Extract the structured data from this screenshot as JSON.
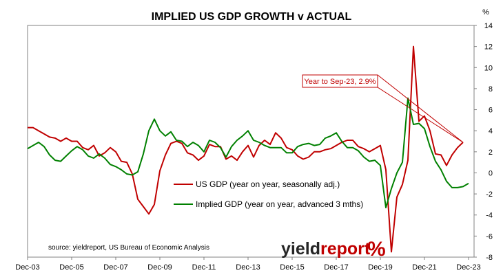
{
  "chart_data": {
    "type": "line",
    "title": "IMPLIED US GDP GROWTH v ACTUAL",
    "ylabel": "%",
    "ylim": [
      -8,
      14
    ],
    "yticks": [
      -8,
      -6,
      -4,
      -2,
      0,
      2,
      4,
      6,
      8,
      10,
      12,
      14
    ],
    "xlim": [
      "2003-12",
      "2024-03"
    ],
    "xticks": [
      "Dec-03",
      "Dec-05",
      "Dec-07",
      "Dec-09",
      "Dec-11",
      "Dec-13",
      "Dec-15",
      "Dec-17",
      "Dec-19",
      "Dec-21",
      "Dec-23"
    ],
    "grid": false,
    "legend_position": "center-left",
    "source": "source: yieldreport, US Bureau of Economic Analysis",
    "annotation": {
      "text": "Year to Sep-23, 2.9%",
      "x": "2023-09",
      "y": 2.9
    },
    "logo": {
      "text_dark": "yield",
      "text_accent": "report",
      "symbol": "%"
    },
    "colors": {
      "actual": "#c00000",
      "implied": "#008000",
      "axis": "#808080",
      "callout_border": "#c00000",
      "logo_dark": "#262626",
      "logo_accent": "#c00000"
    },
    "series": [
      {
        "name": "US GDP (year on year, seasonally adj.)",
        "key": "actual",
        "points": [
          [
            "2003-12",
            4.3
          ],
          [
            "2004-03",
            4.3
          ],
          [
            "2004-06",
            4.0
          ],
          [
            "2004-09",
            3.7
          ],
          [
            "2004-12",
            3.4
          ],
          [
            "2005-03",
            3.3
          ],
          [
            "2005-06",
            3.0
          ],
          [
            "2005-09",
            3.3
          ],
          [
            "2005-12",
            3.0
          ],
          [
            "2006-03",
            3.0
          ],
          [
            "2006-06",
            2.4
          ],
          [
            "2006-09",
            2.2
          ],
          [
            "2006-12",
            2.6
          ],
          [
            "2007-03",
            1.6
          ],
          [
            "2007-06",
            1.9
          ],
          [
            "2007-09",
            2.4
          ],
          [
            "2007-12",
            2.0
          ],
          [
            "2008-03",
            1.1
          ],
          [
            "2008-06",
            1.0
          ],
          [
            "2008-09",
            -0.1
          ],
          [
            "2008-12",
            -2.5
          ],
          [
            "2009-03",
            -3.2
          ],
          [
            "2009-06",
            -3.9
          ],
          [
            "2009-09",
            -3.0
          ],
          [
            "2009-12",
            0.2
          ],
          [
            "2010-03",
            1.7
          ],
          [
            "2010-06",
            2.8
          ],
          [
            "2010-09",
            3.0
          ],
          [
            "2010-12",
            2.8
          ],
          [
            "2011-03",
            1.9
          ],
          [
            "2011-06",
            1.7
          ],
          [
            "2011-09",
            1.2
          ],
          [
            "2011-12",
            1.6
          ],
          [
            "2012-03",
            2.7
          ],
          [
            "2012-06",
            2.5
          ],
          [
            "2012-09",
            2.5
          ],
          [
            "2012-12",
            1.3
          ],
          [
            "2013-03",
            1.6
          ],
          [
            "2013-06",
            1.2
          ],
          [
            "2013-09",
            2.0
          ],
          [
            "2013-12",
            2.6
          ],
          [
            "2014-03",
            1.5
          ],
          [
            "2014-06",
            2.6
          ],
          [
            "2014-09",
            3.1
          ],
          [
            "2014-12",
            2.7
          ],
          [
            "2015-03",
            3.8
          ],
          [
            "2015-06",
            3.3
          ],
          [
            "2015-09",
            2.4
          ],
          [
            "2015-12",
            2.2
          ],
          [
            "2016-03",
            1.6
          ],
          [
            "2016-06",
            1.3
          ],
          [
            "2016-09",
            1.5
          ],
          [
            "2016-12",
            2.0
          ],
          [
            "2017-03",
            2.0
          ],
          [
            "2017-06",
            2.2
          ],
          [
            "2017-09",
            2.3
          ],
          [
            "2017-12",
            2.6
          ],
          [
            "2018-03",
            2.9
          ],
          [
            "2018-06",
            3.1
          ],
          [
            "2018-09",
            3.1
          ],
          [
            "2018-12",
            2.5
          ],
          [
            "2019-03",
            2.3
          ],
          [
            "2019-06",
            2.0
          ],
          [
            "2019-09",
            2.3
          ],
          [
            "2019-12",
            2.6
          ],
          [
            "2020-03",
            0.3
          ],
          [
            "2020-06",
            -7.5
          ],
          [
            "2020-09",
            -2.3
          ],
          [
            "2020-12",
            -1.1
          ],
          [
            "2021-03",
            1.2
          ],
          [
            "2021-06",
            12.0
          ],
          [
            "2021-09",
            4.9
          ],
          [
            "2021-12",
            5.4
          ],
          [
            "2022-03",
            4.0
          ],
          [
            "2022-06",
            1.8
          ],
          [
            "2022-09",
            1.7
          ],
          [
            "2022-12",
            0.7
          ],
          [
            "2023-03",
            1.7
          ],
          [
            "2023-06",
            2.4
          ],
          [
            "2023-09",
            2.9
          ]
        ]
      },
      {
        "name": "Implied GDP (year on year, advanced 3 mths)",
        "key": "implied",
        "points": [
          [
            "2003-12",
            2.3
          ],
          [
            "2004-03",
            2.6
          ],
          [
            "2004-06",
            2.9
          ],
          [
            "2004-09",
            2.5
          ],
          [
            "2004-12",
            1.7
          ],
          [
            "2005-03",
            1.2
          ],
          [
            "2005-06",
            1.1
          ],
          [
            "2005-09",
            1.6
          ],
          [
            "2005-12",
            2.1
          ],
          [
            "2006-03",
            2.5
          ],
          [
            "2006-06",
            2.2
          ],
          [
            "2006-09",
            1.6
          ],
          [
            "2006-12",
            1.4
          ],
          [
            "2007-03",
            1.8
          ],
          [
            "2007-06",
            1.4
          ],
          [
            "2007-09",
            0.8
          ],
          [
            "2007-12",
            0.6
          ],
          [
            "2008-03",
            0.3
          ],
          [
            "2008-06",
            -0.1
          ],
          [
            "2008-09",
            -0.2
          ],
          [
            "2008-12",
            0.1
          ],
          [
            "2009-03",
            1.8
          ],
          [
            "2009-06",
            4.0
          ],
          [
            "2009-09",
            5.1
          ],
          [
            "2009-12",
            4.0
          ],
          [
            "2010-03",
            3.5
          ],
          [
            "2010-06",
            3.9
          ],
          [
            "2010-09",
            3.1
          ],
          [
            "2010-12",
            3.0
          ],
          [
            "2011-03",
            2.5
          ],
          [
            "2011-06",
            2.9
          ],
          [
            "2011-09",
            2.6
          ],
          [
            "2011-12",
            2.0
          ],
          [
            "2012-03",
            3.1
          ],
          [
            "2012-06",
            2.9
          ],
          [
            "2012-09",
            2.4
          ],
          [
            "2012-12",
            1.5
          ],
          [
            "2013-03",
            2.5
          ],
          [
            "2013-06",
            3.1
          ],
          [
            "2013-09",
            3.5
          ],
          [
            "2013-12",
            4.0
          ],
          [
            "2014-03",
            3.1
          ],
          [
            "2014-06",
            2.9
          ],
          [
            "2014-09",
            2.6
          ],
          [
            "2014-12",
            2.4
          ],
          [
            "2015-03",
            2.4
          ],
          [
            "2015-06",
            2.4
          ],
          [
            "2015-09",
            1.9
          ],
          [
            "2015-12",
            1.9
          ],
          [
            "2016-03",
            2.5
          ],
          [
            "2016-06",
            2.7
          ],
          [
            "2016-09",
            2.8
          ],
          [
            "2016-12",
            2.6
          ],
          [
            "2017-03",
            2.7
          ],
          [
            "2017-06",
            3.3
          ],
          [
            "2017-09",
            3.5
          ],
          [
            "2017-12",
            3.8
          ],
          [
            "2018-03",
            3.0
          ],
          [
            "2018-06",
            2.4
          ],
          [
            "2018-09",
            2.4
          ],
          [
            "2018-12",
            2.1
          ],
          [
            "2019-03",
            1.5
          ],
          [
            "2019-06",
            1.1
          ],
          [
            "2019-09",
            1.2
          ],
          [
            "2019-12",
            0.7
          ],
          [
            "2020-03",
            -3.3
          ],
          [
            "2020-06",
            -1.5
          ],
          [
            "2020-09",
            0.0
          ],
          [
            "2020-12",
            1.0
          ],
          [
            "2021-03",
            7.1
          ],
          [
            "2021-06",
            4.6
          ],
          [
            "2021-09",
            4.7
          ],
          [
            "2021-12",
            4.2
          ],
          [
            "2022-03",
            2.5
          ],
          [
            "2022-06",
            1.1
          ],
          [
            "2022-09",
            0.3
          ],
          [
            "2022-12",
            -0.8
          ],
          [
            "2023-03",
            -1.4
          ],
          [
            "2023-06",
            -1.4
          ],
          [
            "2023-09",
            -1.3
          ],
          [
            "2023-12",
            -1.0
          ]
        ]
      }
    ]
  }
}
